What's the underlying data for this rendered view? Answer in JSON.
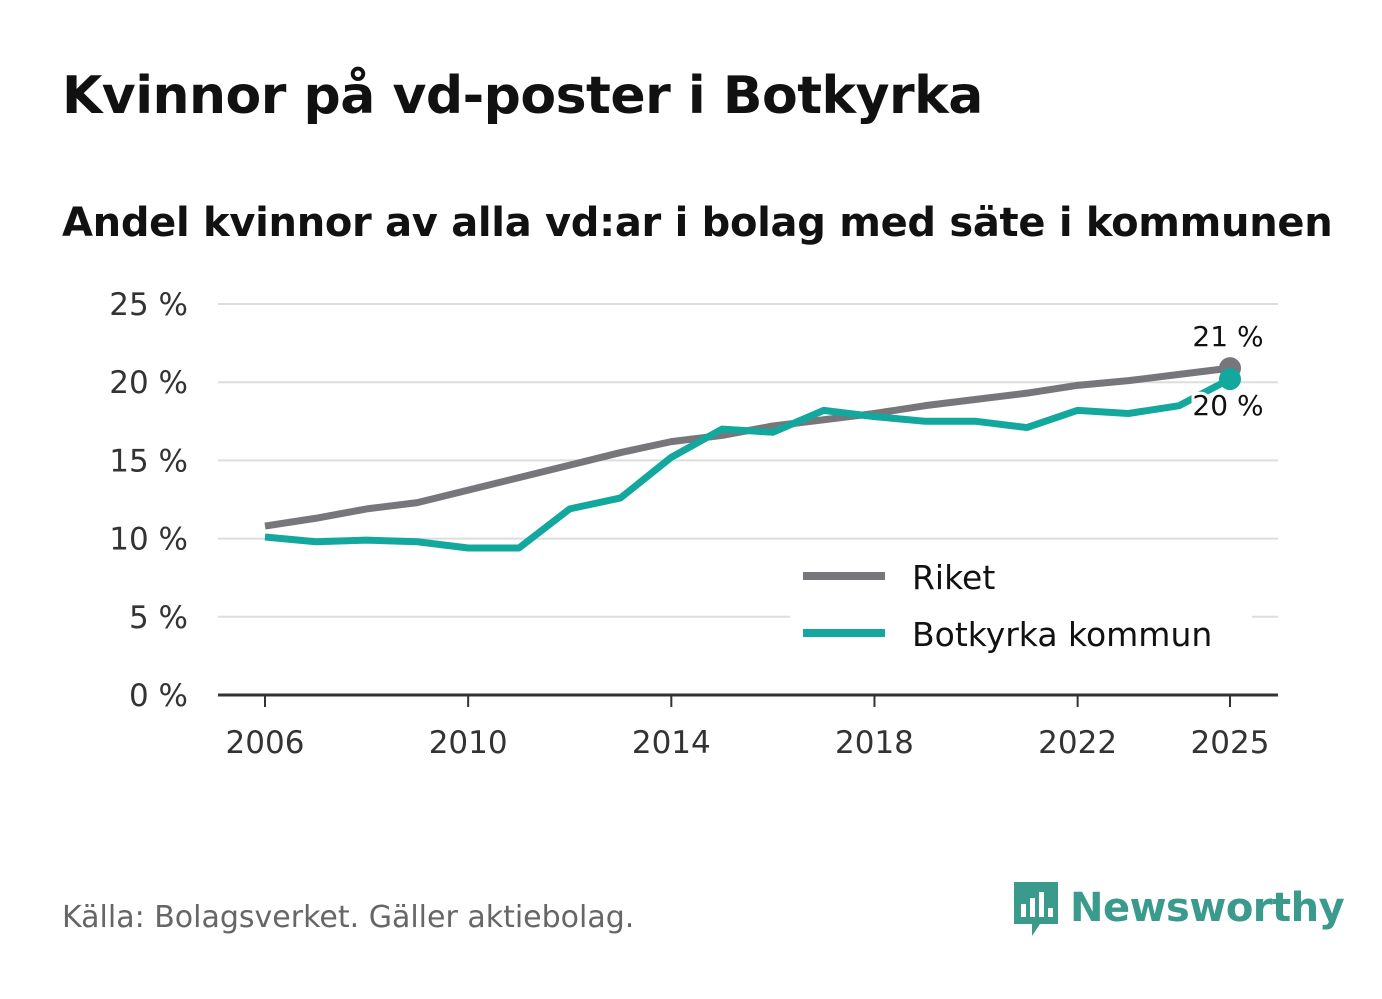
{
  "header": {
    "title": "Kvinnor på vd-poster i Botkyrka",
    "subtitle": "Andel kvinnor av alla vd:ar i bolag med säte i kommunen"
  },
  "footer": {
    "source": "Källa: Bolagsverket. Gäller aktiebolag.",
    "brand": "Newsworthy"
  },
  "colors": {
    "riket": "#77767b",
    "botkyrka": "#13a89e",
    "grid": "#dddddd",
    "axis": "#333333"
  },
  "chart_data": {
    "type": "line",
    "title": "Kvinnor på vd-poster i Botkyrka",
    "subtitle": "Andel kvinnor av alla vd:ar i bolag med säte i kommunen",
    "xlabel": "",
    "ylabel": "",
    "xlim": [
      2005,
      2026
    ],
    "ylim": [
      0,
      25
    ],
    "x_ticks": [
      2006,
      2010,
      2014,
      2018,
      2022,
      2025
    ],
    "y_ticks": [
      0,
      5,
      10,
      15,
      20,
      25
    ],
    "y_tick_labels": [
      "0 %",
      "5 %",
      "10 %",
      "15 %",
      "20 %",
      "25 %"
    ],
    "grid": true,
    "legend_position": "bottom-right",
    "x": [
      2006,
      2007,
      2008,
      2009,
      2010,
      2011,
      2012,
      2013,
      2014,
      2015,
      2016,
      2017,
      2018,
      2019,
      2020,
      2021,
      2022,
      2023,
      2024,
      2025
    ],
    "series": [
      {
        "name": "Riket",
        "color_key": "riket",
        "values": [
          10.8,
          11.3,
          11.9,
          12.3,
          13.1,
          13.9,
          14.7,
          15.5,
          16.2,
          16.6,
          17.2,
          17.6,
          18.0,
          18.5,
          18.9,
          19.3,
          19.8,
          20.1,
          20.5,
          20.9
        ],
        "end_label": "21 %"
      },
      {
        "name": "Botkyrka kommun",
        "color_key": "botkyrka",
        "values": [
          10.1,
          9.8,
          9.9,
          9.8,
          9.4,
          9.4,
          11.9,
          12.6,
          15.2,
          17.0,
          16.8,
          18.2,
          17.8,
          17.5,
          17.5,
          17.1,
          18.2,
          18.0,
          18.5,
          20.2
        ],
        "end_label": "20 %"
      }
    ]
  }
}
